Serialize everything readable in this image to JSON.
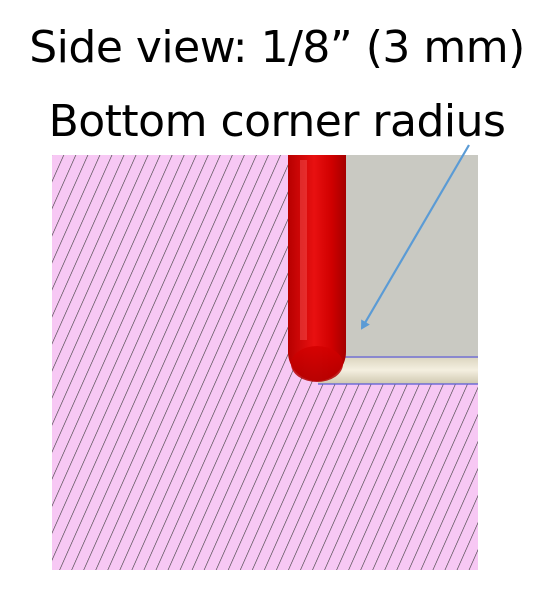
{
  "title": {
    "line1": "Side view: 1/8” (3 mm)",
    "line2": "Bottom corner radius"
  },
  "colors": {
    "material_fill": "#f7c8f4",
    "hatch_line": "#3a3a3a",
    "pocket_fill": "#c9c9c2",
    "tool_red": "#d40000",
    "tool_highlight": "#ff6a6a",
    "floor_edge": "#e8e2cc",
    "outline_blue": "#5a5ad8",
    "arrow_blue": "#5b9bd5"
  }
}
